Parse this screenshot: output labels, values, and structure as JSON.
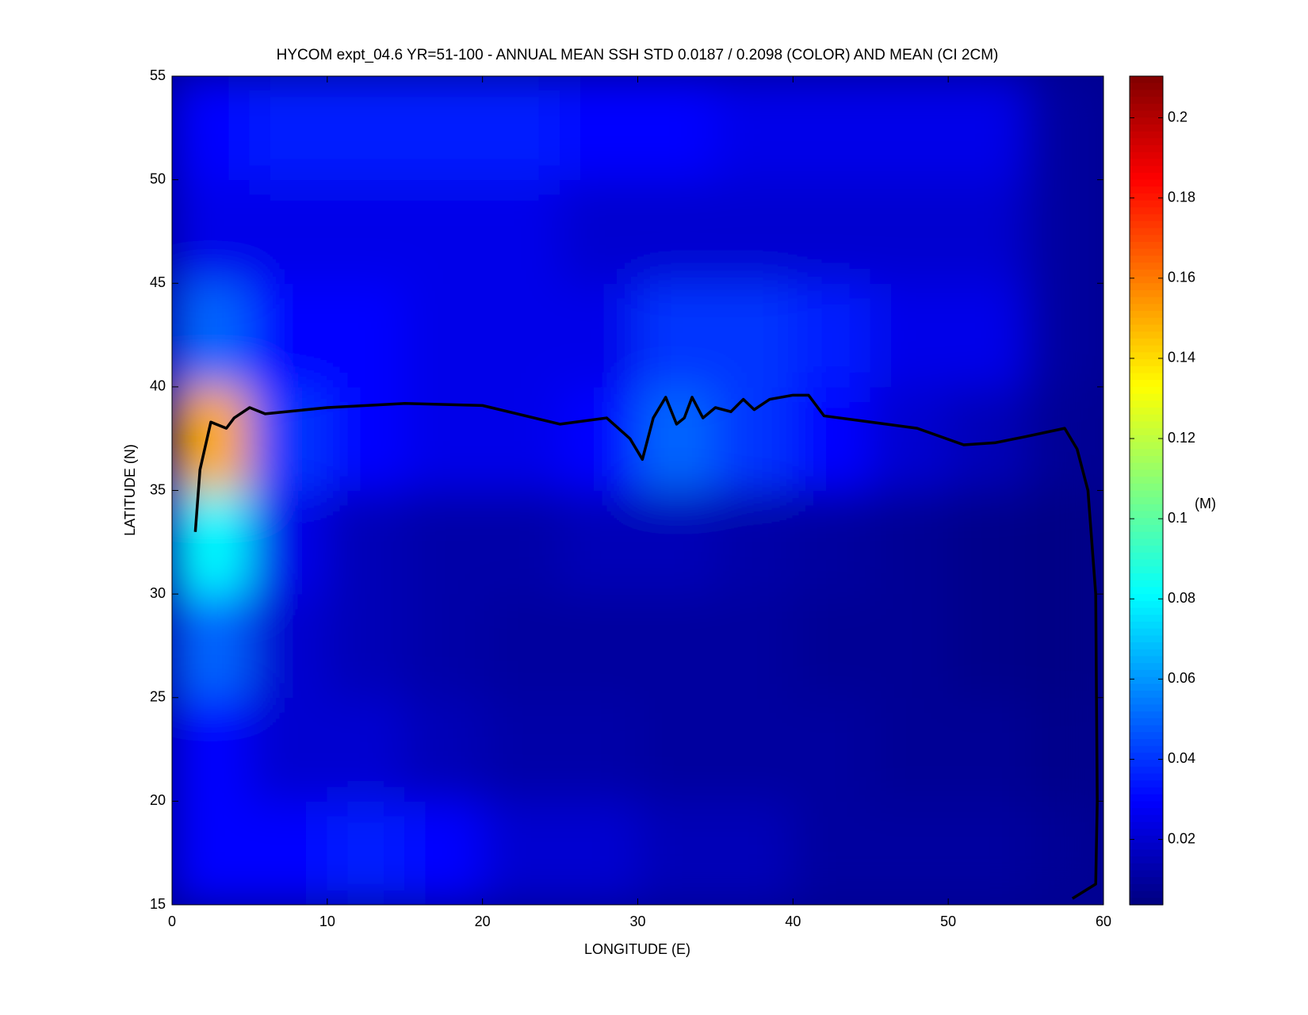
{
  "chart_data": {
    "type": "heatmap",
    "title": "HYCOM expt_04.6 YR=51-100 - ANNUAL MEAN SSH STD 0.0187 / 0.2098 (COLOR) AND MEAN (CI 2CM)",
    "x_label": "LONGITUDE (E)",
    "y_label": "LATITUDE (N)",
    "xlim": [
      0,
      60
    ],
    "ylim": [
      15,
      55
    ],
    "xticks": [
      0,
      10,
      20,
      30,
      40,
      50,
      60
    ],
    "yticks": [
      15,
      20,
      25,
      30,
      35,
      40,
      45,
      50,
      55
    ],
    "xbins": [
      0,
      5,
      10,
      15,
      20,
      25,
      30,
      35,
      40,
      45,
      50,
      55,
      60
    ],
    "ybins": [
      15,
      20,
      25,
      30,
      35,
      40,
      45,
      50,
      55
    ],
    "z": [
      [
        0.03,
        0.03,
        0.035,
        0.03,
        0.02,
        0.02,
        0.015,
        0.015,
        0.01,
        0.01,
        0.01,
        0.008
      ],
      [
        0.03,
        0.02,
        0.02,
        0.015,
        0.012,
        0.012,
        0.01,
        0.01,
        0.01,
        0.008,
        0.008,
        0.006
      ],
      [
        0.05,
        0.02,
        0.015,
        0.012,
        0.01,
        0.01,
        0.01,
        0.01,
        0.008,
        0.008,
        0.006,
        0.005
      ],
      [
        0.08,
        0.025,
        0.015,
        0.012,
        0.012,
        0.015,
        0.015,
        0.012,
        0.01,
        0.008,
        0.006,
        0.005
      ],
      [
        0.15,
        0.04,
        0.03,
        0.025,
        0.025,
        0.03,
        0.05,
        0.04,
        0.03,
        0.02,
        0.015,
        0.008
      ],
      [
        0.05,
        0.03,
        0.03,
        0.025,
        0.025,
        0.025,
        0.04,
        0.04,
        0.035,
        0.025,
        0.025,
        0.01
      ],
      [
        0.025,
        0.025,
        0.025,
        0.025,
        0.025,
        0.02,
        0.02,
        0.02,
        0.02,
        0.02,
        0.02,
        0.01
      ],
      [
        0.03,
        0.035,
        0.035,
        0.035,
        0.035,
        0.03,
        0.03,
        0.025,
        0.025,
        0.025,
        0.025,
        0.01
      ]
    ],
    "contour": {
      "x": [
        1.5,
        1.8,
        2.5,
        3.5,
        4,
        5,
        6,
        10,
        15,
        20,
        25,
        28,
        29.5,
        30.3,
        31,
        31.8,
        32.5,
        33,
        33.5,
        34.2,
        35,
        36,
        36.8,
        37.5,
        38.5,
        40,
        41,
        42,
        45,
        48,
        51,
        53,
        55,
        57.5,
        58.3,
        59,
        59.5,
        59.6,
        59.5,
        58
      ],
      "y": [
        33,
        36,
        38.3,
        38,
        38.5,
        39,
        38.7,
        39,
        39.2,
        39.1,
        38.2,
        38.5,
        37.5,
        36.5,
        38.5,
        39.5,
        38.2,
        38.5,
        39.5,
        38.5,
        39,
        38.8,
        39.4,
        38.9,
        39.4,
        39.6,
        39.6,
        38.6,
        38.3,
        38,
        37.2,
        37.3,
        37.6,
        38,
        37,
        35,
        30,
        20,
        16,
        15.3
      ]
    },
    "clim": [
      0.0037,
      0.2104
    ],
    "colorbar_ticks": [
      0.02,
      0.04,
      0.06,
      0.08,
      0.1,
      0.12,
      0.14,
      0.16,
      0.18,
      0.2
    ],
    "colorbar_label": "(M)",
    "colormap": "jet"
  }
}
